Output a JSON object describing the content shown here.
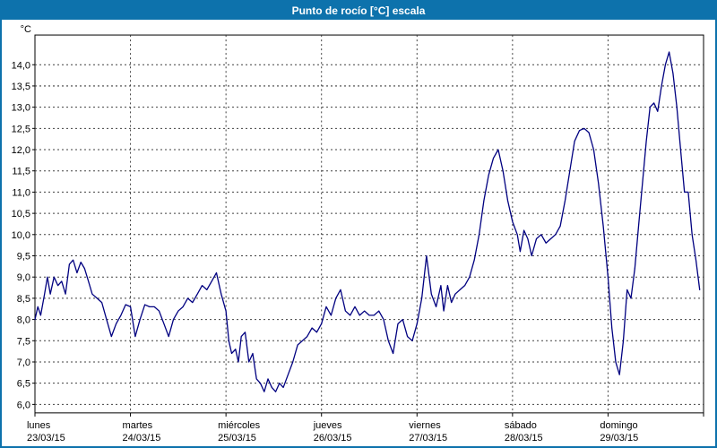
{
  "window": {
    "title": "Punto de rocío [°C] escala"
  },
  "colors": {
    "titlebar": "#0d72ac",
    "window_border": "#0d72ac",
    "line": "#000080",
    "grid": "#404040",
    "axis": "#000000",
    "plot_background": "#ffffff",
    "title_text": "#ffffff"
  },
  "chart_data": {
    "type": "line",
    "title": "Punto de rocío [°C] escala",
    "xlabel": "",
    "ylabel": "°C",
    "y_unit_label": "°C",
    "legend": "none",
    "grid": "dashed",
    "grid_color": "#404040",
    "xlim": [
      0,
      7
    ],
    "ylim": [
      5.8,
      14.7
    ],
    "y_ticks": [
      14.0,
      13.5,
      13.0,
      12.5,
      12.0,
      11.5,
      11.0,
      10.5,
      10.0,
      9.5,
      9.0,
      8.5,
      8.0,
      7.5,
      7.0,
      6.5,
      6.0
    ],
    "y_tick_labels": [
      "14,0",
      "13,5",
      "13,0",
      "12,5",
      "12,0",
      "11,5",
      "11,0",
      "10,5",
      "10,0",
      "9,5",
      "9,0",
      "8,5",
      "8,0",
      "7,5",
      "7,0",
      "6,5",
      "6,0"
    ],
    "x_days": [
      {
        "name": "lunes",
        "date": "23/03/15"
      },
      {
        "name": "martes",
        "date": "24/03/15"
      },
      {
        "name": "miércoles",
        "date": "25/03/15"
      },
      {
        "name": "jueves",
        "date": "26/03/15"
      },
      {
        "name": "viernes",
        "date": "27/03/15"
      },
      {
        "name": "sábado",
        "date": "28/03/15"
      },
      {
        "name": "domingo",
        "date": "29/03/15"
      }
    ],
    "series": [
      {
        "name": "Punto de rocío",
        "color": "#000080",
        "x": [
          0.0,
          0.03,
          0.06,
          0.1,
          0.13,
          0.16,
          0.2,
          0.24,
          0.28,
          0.32,
          0.36,
          0.4,
          0.44,
          0.48,
          0.52,
          0.56,
          0.6,
          0.65,
          0.7,
          0.75,
          0.8,
          0.85,
          0.9,
          0.95,
          1.0,
          1.05,
          1.1,
          1.15,
          1.2,
          1.25,
          1.3,
          1.35,
          1.4,
          1.45,
          1.5,
          1.55,
          1.6,
          1.65,
          1.7,
          1.75,
          1.8,
          1.85,
          1.9,
          1.95,
          2.0,
          2.03,
          2.06,
          2.1,
          2.13,
          2.16,
          2.2,
          2.24,
          2.28,
          2.32,
          2.36,
          2.4,
          2.44,
          2.48,
          2.52,
          2.56,
          2.6,
          2.65,
          2.7,
          2.75,
          2.8,
          2.85,
          2.9,
          2.95,
          3.0,
          3.05,
          3.1,
          3.15,
          3.2,
          3.25,
          3.3,
          3.35,
          3.4,
          3.45,
          3.5,
          3.55,
          3.6,
          3.65,
          3.7,
          3.75,
          3.8,
          3.85,
          3.9,
          3.95,
          4.0,
          4.05,
          4.1,
          4.15,
          4.2,
          4.25,
          4.28,
          4.32,
          4.36,
          4.4,
          4.45,
          4.5,
          4.55,
          4.6,
          4.65,
          4.7,
          4.75,
          4.8,
          4.85,
          4.9,
          4.95,
          5.0,
          5.05,
          5.08,
          5.12,
          5.16,
          5.2,
          5.25,
          5.3,
          5.35,
          5.4,
          5.45,
          5.5,
          5.55,
          5.6,
          5.65,
          5.7,
          5.75,
          5.8,
          5.85,
          5.9,
          5.95,
          6.0,
          6.04,
          6.08,
          6.12,
          6.16,
          6.2,
          6.24,
          6.28,
          6.32,
          6.36,
          6.4,
          6.44,
          6.48,
          6.52,
          6.56,
          6.6,
          6.64,
          6.68,
          6.72,
          6.76,
          6.8,
          6.84,
          6.88,
          6.92,
          6.96
        ],
        "y": [
          8.0,
          8.3,
          8.1,
          8.6,
          9.0,
          8.6,
          9.0,
          8.8,
          8.9,
          8.6,
          9.3,
          9.4,
          9.1,
          9.35,
          9.2,
          8.9,
          8.6,
          8.5,
          8.4,
          8.0,
          7.6,
          7.9,
          8.1,
          8.35,
          8.3,
          7.6,
          8.0,
          8.35,
          8.3,
          8.3,
          8.2,
          7.9,
          7.6,
          8.0,
          8.2,
          8.3,
          8.5,
          8.4,
          8.6,
          8.8,
          8.7,
          8.9,
          9.1,
          8.6,
          8.2,
          7.5,
          7.2,
          7.3,
          7.0,
          7.6,
          7.7,
          7.0,
          7.2,
          6.6,
          6.5,
          6.3,
          6.6,
          6.4,
          6.3,
          6.5,
          6.4,
          6.7,
          7.0,
          7.4,
          7.5,
          7.6,
          7.8,
          7.7,
          7.9,
          8.3,
          8.1,
          8.5,
          8.7,
          8.2,
          8.1,
          8.3,
          8.1,
          8.2,
          8.1,
          8.1,
          8.2,
          8.0,
          7.5,
          7.2,
          7.9,
          8.0,
          7.6,
          7.5,
          7.9,
          8.5,
          9.5,
          8.6,
          8.3,
          8.8,
          8.2,
          8.8,
          8.4,
          8.6,
          8.7,
          8.8,
          9.0,
          9.4,
          10.0,
          10.8,
          11.4,
          11.8,
          12.0,
          11.5,
          10.8,
          10.3,
          10.0,
          9.6,
          10.1,
          9.9,
          9.5,
          9.9,
          10.0,
          9.8,
          9.9,
          10.0,
          10.2,
          10.8,
          11.5,
          12.2,
          12.45,
          12.5,
          12.4,
          12.0,
          11.2,
          10.2,
          9.0,
          7.8,
          7.0,
          6.7,
          7.5,
          8.7,
          8.5,
          9.2,
          10.2,
          11.2,
          12.2,
          13.0,
          13.1,
          12.9,
          13.5,
          14.0,
          14.3,
          13.8,
          13.0,
          12.0,
          11.0,
          11.0,
          10.0,
          9.4,
          8.7
        ]
      }
    ]
  }
}
